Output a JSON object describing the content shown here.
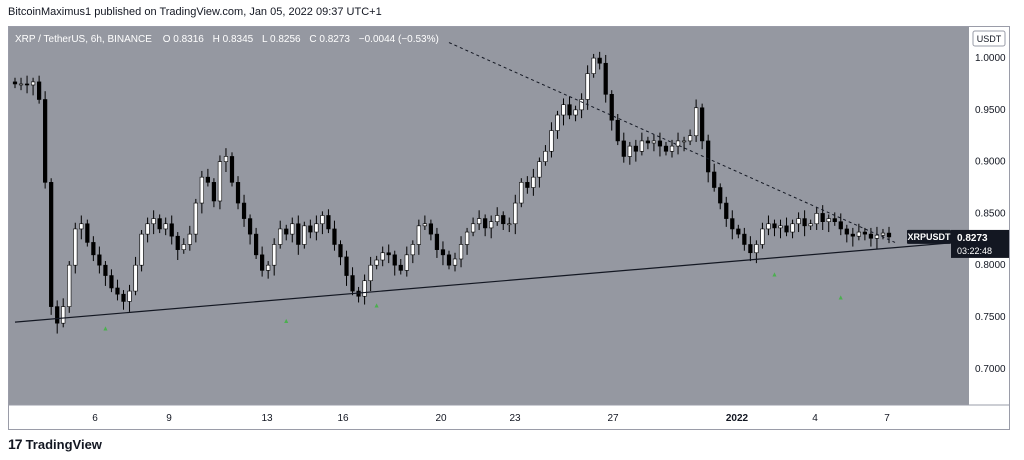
{
  "header": {
    "publisher": "BitcoinMaximus1 published on TradingView.com, Jan 05, 2022 09:37 UTC+1"
  },
  "legend": {
    "symbol": "XRP / TetherUS, 6h, BINANCE",
    "o_label": "O",
    "o_value": "0.8316",
    "h_label": "H",
    "h_value": "0.8345",
    "l_label": "L",
    "l_value": "0.8256",
    "c_label": "C",
    "c_value": "0.8273",
    "change": "−0.0044 (−0.53%)"
  },
  "currency": "USDT",
  "price_tag": {
    "symbol": "XRPUSDT",
    "price": "0.8273",
    "countdown": "03:22:48"
  },
  "footer": {
    "brand": "TradingView"
  },
  "colors": {
    "background": "#9598a1",
    "up_candle": "#ffffff",
    "down_candle": "#000000",
    "marker": "#4caf50",
    "trendline": "#131722",
    "price_tag": "#131722"
  },
  "chart_data": {
    "type": "candlestick",
    "title": "XRP / TetherUS, 6h, BINANCE",
    "ylim": [
      0.665,
      1.03
    ],
    "y_ticks": [
      {
        "value": 0.7,
        "label": "0.7000"
      },
      {
        "value": 0.75,
        "label": "0.7500"
      },
      {
        "value": 0.8,
        "label": "0.8000"
      },
      {
        "value": 0.85,
        "label": "0.8500"
      },
      {
        "value": 0.9,
        "label": "0.9000"
      },
      {
        "value": 0.95,
        "label": "0.9500"
      },
      {
        "value": 1.0,
        "label": "1.0000"
      }
    ],
    "x_ticks": [
      "6",
      "9",
      "13",
      "16",
      "20",
      "23",
      "27",
      "2022",
      "4",
      "7"
    ],
    "grid": false,
    "closes": [
      0.975,
      0.975,
      0.974,
      0.977,
      0.96,
      0.88,
      0.76,
      0.744,
      0.76,
      0.8,
      0.835,
      0.84,
      0.822,
      0.81,
      0.8,
      0.79,
      0.778,
      0.772,
      0.765,
      0.775,
      0.8,
      0.83,
      0.84,
      0.845,
      0.835,
      0.84,
      0.828,
      0.815,
      0.82,
      0.83,
      0.86,
      0.885,
      0.88,
      0.862,
      0.9,
      0.905,
      0.88,
      0.86,
      0.845,
      0.83,
      0.81,
      0.795,
      0.8,
      0.82,
      0.835,
      0.83,
      0.84,
      0.82,
      0.838,
      0.832,
      0.84,
      0.848,
      0.835,
      0.82,
      0.808,
      0.79,
      0.775,
      0.77,
      0.785,
      0.8,
      0.805,
      0.812,
      0.81,
      0.8,
      0.795,
      0.81,
      0.82,
      0.838,
      0.84,
      0.83,
      0.815,
      0.81,
      0.8,
      0.806,
      0.82,
      0.832,
      0.84,
      0.845,
      0.836,
      0.842,
      0.848,
      0.84,
      0.84,
      0.86,
      0.88,
      0.875,
      0.885,
      0.9,
      0.91,
      0.93,
      0.945,
      0.955,
      0.945,
      0.95,
      0.96,
      0.985,
      1.0,
      0.995,
      0.965,
      0.94,
      0.92,
      0.905,
      0.915,
      0.91,
      0.92,
      0.918,
      0.92,
      0.915,
      0.91,
      0.915,
      0.92,
      0.92,
      0.925,
      0.952,
      0.92,
      0.89,
      0.875,
      0.86,
      0.845,
      0.835,
      0.83,
      0.82,
      0.812,
      0.82,
      0.835,
      0.84,
      0.836,
      0.838,
      0.832,
      0.84,
      0.845,
      0.838,
      0.84,
      0.85,
      0.842,
      0.845,
      0.842,
      0.835,
      0.83,
      0.828,
      0.832,
      0.83,
      0.826,
      0.829,
      0.831,
      0.8273
    ],
    "support_line": [
      {
        "x": 0,
        "y": 0.745
      },
      {
        "x": 146,
        "y": 0.817
      }
    ],
    "resistance_line": [
      {
        "x": 72,
        "y": 1.015
      },
      {
        "x": 146,
        "y": 0.822
      }
    ],
    "markers": [
      {
        "label": "▲",
        "x": 15,
        "y": 0.737
      },
      {
        "label": "▲",
        "x": 45,
        "y": 0.744
      },
      {
        "label": "▲",
        "x": 60,
        "y": 0.759
      },
      {
        "label": "▲",
        "x": 126,
        "y": 0.789
      },
      {
        "label": "▲",
        "x": 137,
        "y": 0.767
      }
    ]
  }
}
